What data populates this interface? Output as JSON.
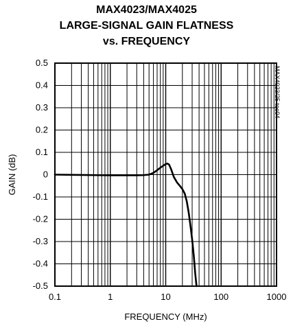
{
  "chart_data": {
    "type": "line",
    "title_lines": [
      "MAX4023/MAX4025",
      "LARGE-SIGNAL GAIN FLATNESS",
      "vs. FREQUENCY"
    ],
    "xlabel": "FREQUENCY (MHz)",
    "ylabel": "GAIN (dB)",
    "x_scale": "log",
    "xlim": [
      0.1,
      1000
    ],
    "ylim": [
      -0.5,
      0.5
    ],
    "x_ticks": [
      {
        "value": 0.1,
        "label": "0.1"
      },
      {
        "value": 1,
        "label": "1"
      },
      {
        "value": 10,
        "label": "10"
      },
      {
        "value": 100,
        "label": "100"
      },
      {
        "value": 1000,
        "label": "1000"
      }
    ],
    "y_ticks": [
      {
        "value": 0.5,
        "label": "0.5"
      },
      {
        "value": 0.4,
        "label": "0.4"
      },
      {
        "value": 0.3,
        "label": "0.3"
      },
      {
        "value": 0.2,
        "label": "0.2"
      },
      {
        "value": 0.1,
        "label": "0.1"
      },
      {
        "value": 0,
        "label": "0"
      },
      {
        "value": -0.1,
        "label": "-0.1"
      },
      {
        "value": -0.2,
        "label": "-0.2"
      },
      {
        "value": -0.3,
        "label": "-0.3"
      },
      {
        "value": -0.4,
        "label": "-0.4"
      },
      {
        "value": -0.5,
        "label": "-0.5"
      }
    ],
    "grid": true,
    "annotation": "MAX4023/25 toc04",
    "series": [
      {
        "x": [
          0.1,
          0.2,
          0.5,
          1,
          2,
          3,
          4,
          5,
          6,
          7,
          8,
          9,
          10,
          10.7,
          11.5,
          12.5,
          14,
          16,
          18,
          20,
          22,
          24,
          26,
          28,
          30,
          32,
          33,
          34,
          35,
          36
        ],
        "y": [
          0,
          -0.001,
          -0.002,
          -0.003,
          -0.003,
          -0.003,
          -0.002,
          0,
          0.008,
          0.02,
          0.031,
          0.04,
          0.047,
          0.05,
          0.045,
          0.025,
          -0.01,
          -0.035,
          -0.05,
          -0.065,
          -0.085,
          -0.12,
          -0.17,
          -0.23,
          -0.29,
          -0.36,
          -0.4,
          -0.44,
          -0.47,
          -0.5
        ]
      }
    ]
  }
}
